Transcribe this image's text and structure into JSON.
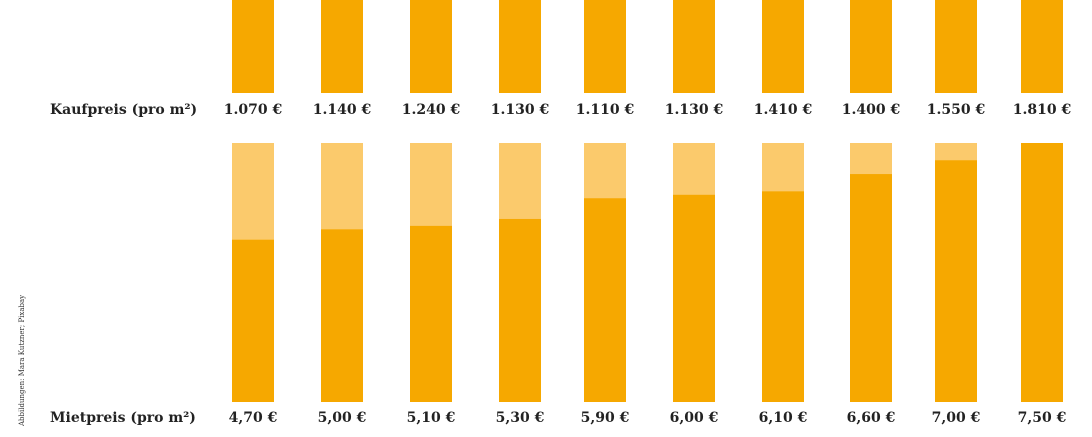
{
  "chart_data": [
    {
      "type": "bar",
      "label": "Kaufpreis (pro m²)",
      "values": [
        1070,
        1140,
        1240,
        1130,
        1110,
        1130,
        1410,
        1400,
        1550,
        1810
      ],
      "value_labels": [
        "1.070 €",
        "1.140 €",
        "1.240 €",
        "1.130 €",
        "1.110 €",
        "1.130 €",
        "1.410 €",
        "1.400 €",
        "1.550 €",
        "1.810 €"
      ],
      "ylim": [
        0,
        1810
      ],
      "color": "#f6a800"
    },
    {
      "type": "bar",
      "label": "Mietpreis (pro m²)",
      "values": [
        4.7,
        5.0,
        5.1,
        5.3,
        5.9,
        6.0,
        6.1,
        6.6,
        7.0,
        7.5
      ],
      "value_labels": [
        "4,70 €",
        "5,00 €",
        "5,10 €",
        "5,30 €",
        "5,90 €",
        "6,00 €",
        "6,10 €",
        "6,60 €",
        "7,00 €",
        "7,50 €"
      ],
      "ylim": [
        0,
        7.5
      ],
      "color": "#f6a800",
      "track_color": "#fbca6c"
    }
  ],
  "credit": "Abbildungen: Mara Kutzner; Pixabay"
}
